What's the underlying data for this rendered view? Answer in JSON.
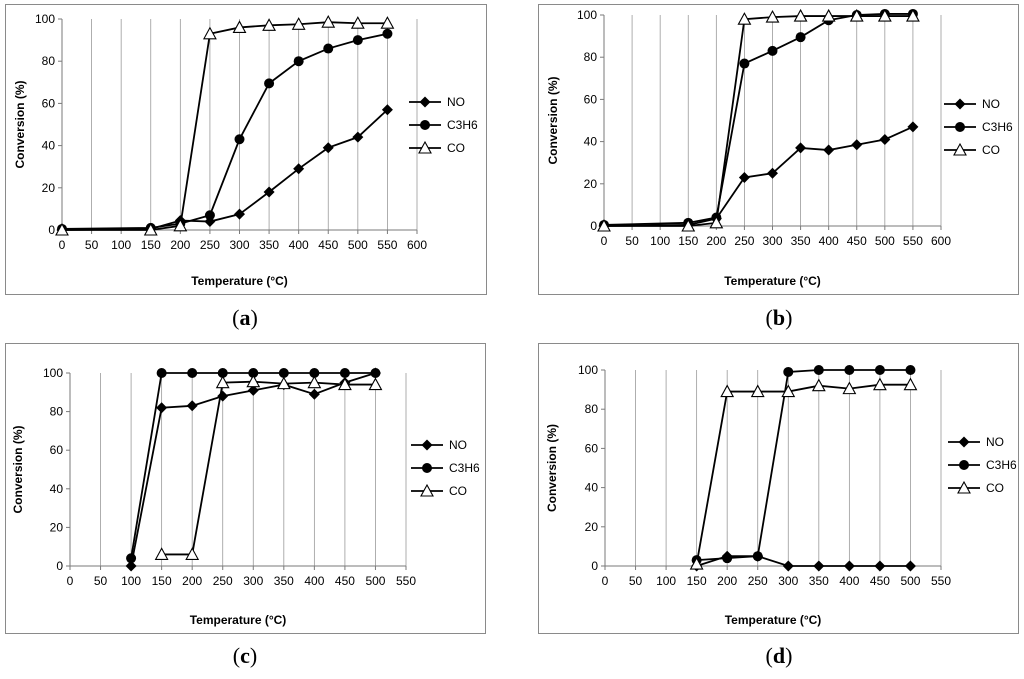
{
  "chart_data": [
    {
      "id": "a",
      "type": "line",
      "panel_label": "(a)",
      "xlabel": "Temperature (°C)",
      "ylabel": "Conversion (%)",
      "xlim": [
        0,
        600
      ],
      "ylim": [
        0,
        100
      ],
      "x_ticks": [
        "0",
        "50",
        "100",
        "150",
        "200",
        "250",
        "300",
        "350",
        "400",
        "450",
        "500",
        "550",
        "600"
      ],
      "y_ticks": [
        "0",
        "20",
        "40",
        "60",
        "80",
        "100"
      ],
      "grid": "vertical",
      "legend_position": "right",
      "series": [
        {
          "name": "NO",
          "marker": "diamond",
          "x": [
            0,
            150,
            200,
            250,
            300,
            350,
            400,
            450,
            500,
            550
          ],
          "values": [
            0,
            0.5,
            4.5,
            4,
            7.5,
            18,
            29,
            39,
            44,
            57
          ]
        },
        {
          "name": "C3H6",
          "marker": "circle",
          "x": [
            0,
            150,
            200,
            250,
            300,
            350,
            400,
            450,
            500,
            550
          ],
          "values": [
            0.5,
            1,
            3,
            7,
            43,
            69.5,
            80,
            86,
            90,
            93
          ]
        },
        {
          "name": "CO",
          "marker": "triangle",
          "x": [
            0,
            150,
            200,
            250,
            300,
            350,
            400,
            450,
            500,
            550
          ],
          "values": [
            0,
            0,
            2,
            93,
            96,
            97,
            97.5,
            98.5,
            98,
            98
          ]
        }
      ]
    },
    {
      "id": "b",
      "type": "line",
      "panel_label": "(b)",
      "xlabel": "Temperature (°C)",
      "ylabel": "Conversion (%)",
      "xlim": [
        0,
        600
      ],
      "ylim": [
        0,
        100
      ],
      "x_ticks": [
        "0",
        "50",
        "100",
        "150",
        "200",
        "250",
        "300",
        "350",
        "400",
        "450",
        "500",
        "550",
        "600"
      ],
      "y_ticks": [
        "0",
        "20",
        "40",
        "60",
        "80",
        "100"
      ],
      "grid": "vertical",
      "legend_position": "right",
      "series": [
        {
          "name": "NO",
          "marker": "diamond",
          "x": [
            0,
            150,
            200,
            250,
            300,
            350,
            400,
            450,
            500,
            550
          ],
          "values": [
            0,
            0.5,
            3.5,
            23,
            25,
            37,
            36,
            38.5,
            41,
            47
          ]
        },
        {
          "name": "C3H6",
          "marker": "circle",
          "x": [
            0,
            150,
            200,
            250,
            300,
            350,
            400,
            450,
            500,
            550
          ],
          "values": [
            0.5,
            1.5,
            4,
            77,
            83,
            89.5,
            97.5,
            100,
            100.5,
            100.5
          ]
        },
        {
          "name": "CO",
          "marker": "triangle",
          "x": [
            0,
            150,
            200,
            250,
            300,
            350,
            400,
            450,
            500,
            550
          ],
          "values": [
            0,
            0,
            1.5,
            98,
            99,
            99.5,
            99.5,
            99.5,
            99.5,
            99.5
          ]
        }
      ]
    },
    {
      "id": "c",
      "type": "line",
      "panel_label": "(c)",
      "xlabel": "Temperature (°C)",
      "ylabel": "Conversion (%)",
      "xlim": [
        0,
        550
      ],
      "ylim": [
        0,
        100
      ],
      "x_ticks": [
        "0",
        "50",
        "100",
        "150",
        "200",
        "250",
        "300",
        "350",
        "400",
        "450",
        "500",
        "550"
      ],
      "y_ticks": [
        "0",
        "20",
        "40",
        "60",
        "80",
        "100"
      ],
      "grid": "vertical",
      "legend_position": "right",
      "series": [
        {
          "name": "NO",
          "marker": "diamond",
          "x": [
            100,
            150,
            200,
            250,
            300,
            350,
            400,
            450,
            500
          ],
          "values": [
            0,
            82,
            83,
            88,
            91,
            94,
            89,
            95,
            100
          ]
        },
        {
          "name": "C3H6",
          "marker": "circle",
          "x": [
            100,
            150,
            200,
            250,
            300,
            350,
            400,
            450,
            500
          ],
          "values": [
            4,
            100,
            100,
            100,
            100,
            100,
            100,
            100,
            100
          ]
        },
        {
          "name": "CO",
          "marker": "triangle",
          "x": [
            150,
            200,
            250,
            300,
            350,
            400,
            450,
            500
          ],
          "values": [
            6,
            6,
            95,
            95.5,
            94.5,
            95,
            94,
            94
          ]
        }
      ]
    },
    {
      "id": "d",
      "type": "line",
      "panel_label": "(d)",
      "xlabel": "Temperature (°C)",
      "ylabel": "Conversion (%)",
      "xlim": [
        0,
        550
      ],
      "ylim": [
        0,
        100
      ],
      "x_ticks": [
        "0",
        "50",
        "100",
        "150",
        "200",
        "250",
        "300",
        "350",
        "400",
        "450",
        "500",
        "550"
      ],
      "y_ticks": [
        "0",
        "20",
        "40",
        "60",
        "80",
        "100"
      ],
      "grid": "vertical",
      "legend_position": "right",
      "series": [
        {
          "name": "NO",
          "marker": "diamond",
          "x": [
            150,
            200,
            250,
            300,
            350,
            400,
            450,
            500
          ],
          "values": [
            0,
            5,
            5,
            0,
            0,
            0,
            0,
            0
          ]
        },
        {
          "name": "C3H6",
          "marker": "circle",
          "x": [
            150,
            200,
            250,
            300,
            350,
            400,
            450,
            500
          ],
          "values": [
            3,
            4,
            5,
            99,
            100,
            100,
            100,
            100
          ]
        },
        {
          "name": "CO",
          "marker": "triangle",
          "x": [
            150,
            200,
            250,
            300,
            350,
            400,
            450,
            500
          ],
          "values": [
            1,
            89,
            89,
            89,
            92,
            90.5,
            92.5,
            92.5
          ]
        }
      ]
    }
  ]
}
